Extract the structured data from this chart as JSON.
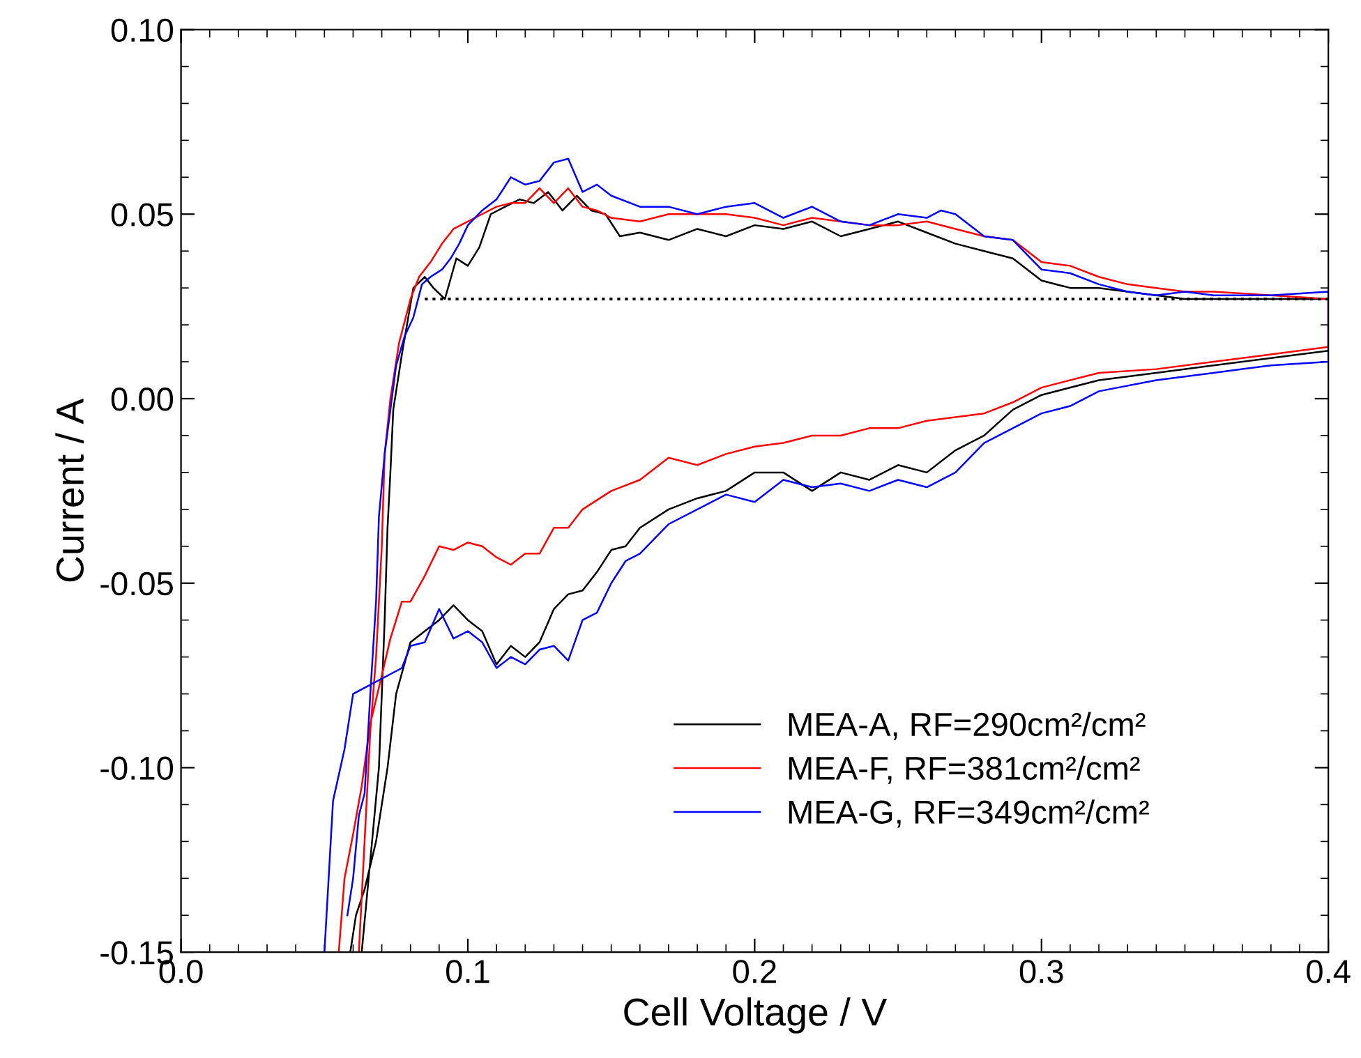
{
  "chart_data": {
    "type": "line",
    "xlabel": "Cell Voltage / V",
    "ylabel": "Current / A",
    "xlim": [
      0.0,
      0.4
    ],
    "ylim": [
      -0.15,
      0.1
    ],
    "xticks": [
      {
        "value": 0.0,
        "label": "0.0"
      },
      {
        "value": 0.1,
        "label": "0.1"
      },
      {
        "value": 0.2,
        "label": "0.2"
      },
      {
        "value": 0.3,
        "label": "0.3"
      },
      {
        "value": 0.4,
        "label": "0.4"
      }
    ],
    "yticks": [
      {
        "value": -0.15,
        "label": "-0.15"
      },
      {
        "value": -0.1,
        "label": "-0.10"
      },
      {
        "value": -0.05,
        "label": "-0.05"
      },
      {
        "value": 0.0,
        "label": "0.00"
      },
      {
        "value": 0.05,
        "label": "0.05"
      },
      {
        "value": 0.1,
        "label": "0.10"
      }
    ],
    "grid": false,
    "legend": "bottom right",
    "line_style": "solid",
    "series": [
      {
        "name": "MEA-A, RF=290cm²/cm²",
        "color": "#000000",
        "x": [
          0.063,
          0.066,
          0.069,
          0.07,
          0.071,
          0.072,
          0.073,
          0.074,
          0.077,
          0.081,
          0.085,
          0.088,
          0.092,
          0.096,
          0.1,
          0.104,
          0.108,
          0.113,
          0.118,
          0.123,
          0.128,
          0.133,
          0.138,
          0.143,
          0.148,
          0.153,
          0.16,
          0.17,
          0.18,
          0.19,
          0.2,
          0.21,
          0.22,
          0.23,
          0.24,
          0.25,
          0.26,
          0.27,
          0.28,
          0.29,
          0.3,
          0.31,
          0.32,
          0.33,
          0.34,
          0.35,
          0.36,
          0.38,
          0.4,
          0.4,
          0.38,
          0.36,
          0.34,
          0.32,
          0.3,
          0.29,
          0.28,
          0.27,
          0.26,
          0.25,
          0.24,
          0.23,
          0.22,
          0.21,
          0.2,
          0.19,
          0.18,
          0.17,
          0.16,
          0.155,
          0.15,
          0.145,
          0.14,
          0.135,
          0.13,
          0.125,
          0.12,
          0.115,
          0.11,
          0.105,
          0.1,
          0.095,
          0.09,
          0.085,
          0.08,
          0.075,
          0.072,
          0.068,
          0.064,
          0.061,
          0.059
        ],
        "values": [
          -0.15,
          -0.125,
          -0.1,
          -0.08,
          -0.06,
          -0.035,
          -0.02,
          -0.003,
          0.012,
          0.03,
          0.033,
          0.03,
          0.027,
          0.038,
          0.036,
          0.041,
          0.05,
          0.052,
          0.054,
          0.053,
          0.056,
          0.051,
          0.055,
          0.051,
          0.05,
          0.044,
          0.045,
          0.043,
          0.046,
          0.044,
          0.047,
          0.046,
          0.048,
          0.044,
          0.046,
          0.048,
          0.045,
          0.042,
          0.04,
          0.038,
          0.032,
          0.03,
          0.03,
          0.029,
          0.028,
          0.027,
          0.027,
          0.027,
          0.027,
          0.013,
          0.011,
          0.009,
          0.007,
          0.005,
          0.001,
          -0.003,
          -0.01,
          -0.014,
          -0.02,
          -0.018,
          -0.022,
          -0.02,
          -0.025,
          -0.02,
          -0.02,
          -0.025,
          -0.027,
          -0.03,
          -0.035,
          -0.04,
          -0.041,
          -0.047,
          -0.052,
          -0.053,
          -0.057,
          -0.066,
          -0.07,
          -0.067,
          -0.072,
          -0.063,
          -0.06,
          -0.056,
          -0.06,
          -0.063,
          -0.066,
          -0.08,
          -0.1,
          -0.12,
          -0.133,
          -0.14,
          -0.15
        ]
      },
      {
        "name": "MEA-F, RF=381cm²/cm²",
        "color": "#ff0000",
        "x": [
          0.062,
          0.064,
          0.066,
          0.068,
          0.07,
          0.071,
          0.073,
          0.076,
          0.08,
          0.083,
          0.087,
          0.091,
          0.095,
          0.1,
          0.105,
          0.11,
          0.115,
          0.12,
          0.125,
          0.13,
          0.135,
          0.14,
          0.145,
          0.15,
          0.16,
          0.17,
          0.18,
          0.19,
          0.2,
          0.21,
          0.22,
          0.23,
          0.24,
          0.25,
          0.26,
          0.27,
          0.28,
          0.29,
          0.3,
          0.31,
          0.32,
          0.33,
          0.34,
          0.35,
          0.36,
          0.38,
          0.4,
          0.4,
          0.38,
          0.36,
          0.34,
          0.32,
          0.3,
          0.29,
          0.28,
          0.27,
          0.26,
          0.25,
          0.24,
          0.23,
          0.22,
          0.21,
          0.2,
          0.19,
          0.18,
          0.17,
          0.16,
          0.15,
          0.14,
          0.135,
          0.13,
          0.125,
          0.12,
          0.115,
          0.11,
          0.105,
          0.1,
          0.095,
          0.09,
          0.085,
          0.08,
          0.077,
          0.073,
          0.07,
          0.066,
          0.063,
          0.06,
          0.057,
          0.055
        ],
        "values": [
          -0.15,
          -0.12,
          -0.09,
          -0.07,
          -0.04,
          -0.015,
          0.0,
          0.015,
          0.027,
          0.033,
          0.037,
          0.042,
          0.046,
          0.048,
          0.05,
          0.052,
          0.053,
          0.053,
          0.057,
          0.053,
          0.057,
          0.052,
          0.051,
          0.049,
          0.048,
          0.05,
          0.05,
          0.05,
          0.049,
          0.047,
          0.049,
          0.048,
          0.047,
          0.047,
          0.048,
          0.046,
          0.044,
          0.043,
          0.037,
          0.036,
          0.033,
          0.031,
          0.03,
          0.029,
          0.029,
          0.028,
          0.027,
          0.014,
          0.012,
          0.01,
          0.008,
          0.007,
          0.003,
          -0.001,
          -0.004,
          -0.005,
          -0.006,
          -0.008,
          -0.008,
          -0.01,
          -0.01,
          -0.012,
          -0.013,
          -0.015,
          -0.018,
          -0.016,
          -0.022,
          -0.025,
          -0.03,
          -0.035,
          -0.035,
          -0.042,
          -0.042,
          -0.045,
          -0.043,
          -0.04,
          -0.039,
          -0.041,
          -0.04,
          -0.048,
          -0.055,
          -0.055,
          -0.065,
          -0.075,
          -0.088,
          -0.105,
          -0.118,
          -0.13,
          -0.15
        ]
      },
      {
        "name": "MEA-G, RF=349cm²/cm²",
        "color": "#0000ff",
        "x": [
          0.058,
          0.06,
          0.062,
          0.064,
          0.066,
          0.068,
          0.069,
          0.071,
          0.073,
          0.075,
          0.078,
          0.081,
          0.084,
          0.087,
          0.091,
          0.094,
          0.097,
          0.1,
          0.105,
          0.11,
          0.115,
          0.12,
          0.125,
          0.13,
          0.135,
          0.14,
          0.145,
          0.15,
          0.16,
          0.17,
          0.18,
          0.19,
          0.2,
          0.21,
          0.22,
          0.23,
          0.24,
          0.25,
          0.26,
          0.265,
          0.27,
          0.28,
          0.29,
          0.3,
          0.31,
          0.32,
          0.33,
          0.34,
          0.35,
          0.36,
          0.38,
          0.4,
          0.4,
          0.38,
          0.36,
          0.34,
          0.32,
          0.31,
          0.3,
          0.29,
          0.28,
          0.27,
          0.26,
          0.25,
          0.24,
          0.23,
          0.22,
          0.21,
          0.2,
          0.19,
          0.18,
          0.17,
          0.16,
          0.155,
          0.15,
          0.145,
          0.14,
          0.135,
          0.13,
          0.125,
          0.12,
          0.115,
          0.11,
          0.105,
          0.1,
          0.095,
          0.09,
          0.085,
          0.08,
          0.077,
          0.06,
          0.057,
          0.053,
          0.05
        ],
        "values": [
          -0.14,
          -0.13,
          -0.113,
          -0.107,
          -0.08,
          -0.055,
          -0.032,
          -0.015,
          -0.003,
          0.009,
          0.017,
          0.022,
          0.031,
          0.033,
          0.035,
          0.038,
          0.042,
          0.047,
          0.051,
          0.054,
          0.06,
          0.058,
          0.059,
          0.064,
          0.065,
          0.056,
          0.058,
          0.055,
          0.052,
          0.052,
          0.05,
          0.052,
          0.053,
          0.049,
          0.052,
          0.048,
          0.047,
          0.05,
          0.049,
          0.051,
          0.05,
          0.044,
          0.043,
          0.035,
          0.034,
          0.031,
          0.029,
          0.028,
          0.029,
          0.028,
          0.028,
          0.029,
          0.01,
          0.009,
          0.007,
          0.005,
          0.002,
          -0.002,
          -0.004,
          -0.008,
          -0.012,
          -0.02,
          -0.024,
          -0.022,
          -0.025,
          -0.023,
          -0.024,
          -0.022,
          -0.028,
          -0.026,
          -0.03,
          -0.034,
          -0.042,
          -0.044,
          -0.05,
          -0.058,
          -0.06,
          -0.071,
          -0.067,
          -0.068,
          -0.072,
          -0.07,
          -0.073,
          -0.066,
          -0.063,
          -0.065,
          -0.057,
          -0.066,
          -0.067,
          -0.073,
          -0.08,
          -0.095,
          -0.109,
          -0.15
        ]
      },
      {
        "color": "#000000",
        "marker": "none",
        "line_style": "dotted",
        "x": [
          0.085,
          0.4
        ],
        "values": [
          0.027,
          0.027
        ]
      }
    ]
  }
}
